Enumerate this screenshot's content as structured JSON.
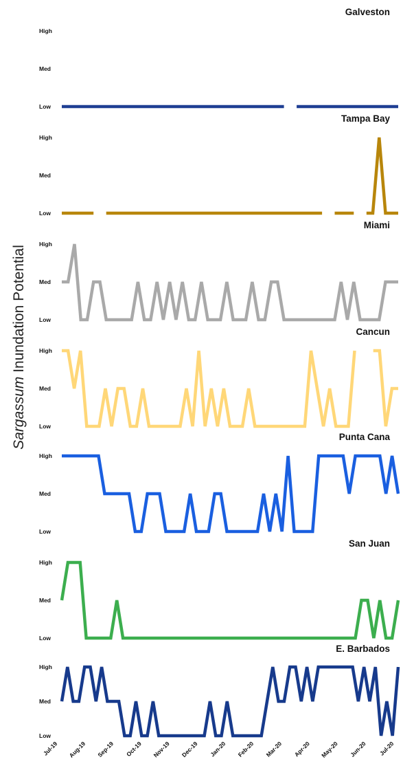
{
  "chart_data": {
    "type": "line",
    "ylabel_italic": "Sargassum",
    "ylabel_rest": "Inundation Potential",
    "levels": [
      "Low",
      "Med",
      "High"
    ],
    "ylim": [
      0,
      2
    ],
    "x_tick_labels": [
      "Jul-19",
      "Aug-19",
      "Sep-19",
      "Oct-19",
      "Nov-19",
      "Dec-19",
      "Jan-20",
      "Feb-20",
      "Mar-20",
      "Apr-20",
      "May-20",
      "Jun-20",
      "Jul-20"
    ],
    "xlim": [
      0,
      53
    ],
    "series": [
      {
        "name": "Galveston",
        "color": "#1f3f93",
        "values": [
          0,
          0,
          0,
          0,
          0,
          0,
          0,
          0,
          0,
          0,
          0,
          0,
          0,
          0,
          0,
          0,
          0,
          0,
          0,
          0,
          0,
          0,
          0,
          0,
          0,
          0,
          0,
          0,
          0,
          0,
          0,
          0,
          0,
          0,
          0,
          0,
          null,
          0,
          0,
          0,
          0,
          0,
          0,
          0,
          0,
          0,
          0,
          0,
          0,
          0,
          0,
          0,
          0,
          0
        ]
      },
      {
        "name": "Tampa Bay",
        "color": "#b8860b",
        "values": [
          0,
          0,
          0,
          0,
          0,
          0,
          null,
          0,
          0,
          0,
          0,
          0,
          0,
          0,
          0,
          0,
          0,
          0,
          0,
          0,
          0,
          0,
          0,
          0,
          0,
          0,
          0,
          0,
          0,
          0,
          0,
          0,
          0,
          0,
          0,
          0,
          0,
          0,
          0,
          0,
          0,
          0,
          null,
          0,
          0,
          0,
          0,
          null,
          0,
          0,
          2,
          0,
          0,
          0
        ]
      },
      {
        "name": "Miami",
        "color": "#a9a9a9",
        "values": [
          1,
          1,
          2,
          0,
          0,
          1,
          1,
          0,
          0,
          0,
          0,
          0,
          1,
          0,
          0,
          1,
          0,
          1,
          0,
          1,
          0,
          0,
          1,
          0,
          0,
          0,
          1,
          0,
          0,
          0,
          1,
          0,
          0,
          1,
          1,
          0,
          0,
          0,
          0,
          0,
          0,
          0,
          0,
          0,
          1,
          0,
          1,
          0,
          0,
          0,
          0,
          1,
          1,
          1
        ]
      },
      {
        "name": "Cancun",
        "color": "#ffd778",
        "values": [
          2,
          2,
          1,
          2,
          0,
          0,
          0,
          1,
          0,
          1,
          1,
          0,
          0,
          1,
          0,
          0,
          0,
          0,
          0,
          0,
          1,
          0,
          2,
          0,
          1,
          0,
          1,
          0,
          0,
          0,
          1,
          0,
          0,
          0,
          0,
          0,
          0,
          0,
          0,
          0,
          2,
          1,
          0,
          1,
          0,
          0,
          0,
          2,
          null,
          null,
          2,
          2,
          0,
          1,
          1
        ]
      },
      {
        "name": "Punta Cana",
        "color": "#1a5fe0",
        "values": [
          2,
          2,
          2,
          2,
          2,
          2,
          2,
          1,
          1,
          1,
          1,
          1,
          0,
          0,
          1,
          1,
          1,
          0,
          0,
          0,
          0,
          1,
          0,
          0,
          0,
          1,
          1,
          0,
          0,
          0,
          0,
          0,
          0,
          1,
          0,
          1,
          0,
          2,
          0,
          0,
          0,
          0,
          2,
          2,
          2,
          2,
          2,
          1,
          2,
          2,
          2,
          2,
          2,
          1,
          2,
          1
        ]
      },
      {
        "name": "San Juan",
        "color": "#3cae4e",
        "values": [
          1,
          2,
          2,
          2,
          0,
          0,
          0,
          0,
          0,
          1,
          0,
          0,
          0,
          0,
          0,
          0,
          0,
          0,
          0,
          0,
          0,
          0,
          0,
          0,
          0,
          0,
          0,
          0,
          0,
          0,
          0,
          0,
          0,
          0,
          0,
          0,
          0,
          0,
          0,
          0,
          0,
          0,
          0,
          0,
          0,
          0,
          0,
          0,
          0,
          1,
          1,
          0,
          1,
          0,
          0,
          1
        ]
      },
      {
        "name": "E. Barbados",
        "color": "#173a8c",
        "values": [
          1,
          2,
          1,
          1,
          2,
          2,
          1,
          2,
          1,
          1,
          1,
          0,
          0,
          1,
          0,
          0,
          1,
          0,
          0,
          0,
          0,
          0,
          0,
          0,
          0,
          0,
          1,
          0,
          0,
          1,
          0,
          0,
          0,
          0,
          0,
          0,
          1,
          2,
          1,
          1,
          2,
          2,
          1,
          2,
          1,
          2,
          2,
          2,
          2,
          2,
          2,
          2,
          1,
          2,
          1,
          2,
          0,
          1,
          0,
          2
        ]
      }
    ]
  }
}
